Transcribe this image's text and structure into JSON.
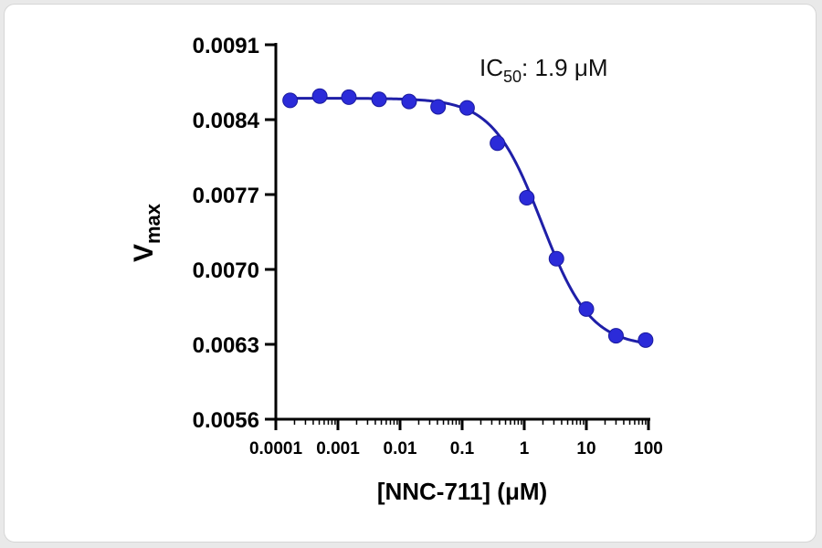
{
  "chart_data": {
    "type": "scatter",
    "x_scale": "log",
    "xlabel": "[NNC-711] (μM)",
    "ylabel": {
      "main": "V",
      "sub": "max"
    },
    "annotation": {
      "main": "IC",
      "sub": "50",
      "rest": ": 1.9 μM"
    },
    "xlim": [
      0.0001,
      100
    ],
    "ylim": [
      0.0056,
      0.0091
    ],
    "x_ticks": [
      {
        "value": 0.0001,
        "label": "0.0001"
      },
      {
        "value": 0.001,
        "label": "0.001"
      },
      {
        "value": 0.01,
        "label": "0.01"
      },
      {
        "value": 0.1,
        "label": "0.1"
      },
      {
        "value": 1,
        "label": "1"
      },
      {
        "value": 10,
        "label": "10"
      },
      {
        "value": 100,
        "label": "100"
      }
    ],
    "y_ticks": [
      {
        "value": 0.0056,
        "label": "0.0056"
      },
      {
        "value": 0.0063,
        "label": "0.0063"
      },
      {
        "value": 0.007,
        "label": "0.0070"
      },
      {
        "value": 0.0077,
        "label": "0.0077"
      },
      {
        "value": 0.0084,
        "label": "0.0084"
      },
      {
        "value": 0.0091,
        "label": "0.0091"
      }
    ],
    "series": [
      {
        "color": "#2b2bd9",
        "points": [
          {
            "x": 0.00017,
            "y": 0.00858
          },
          {
            "x": 0.00051,
            "y": 0.00862
          },
          {
            "x": 0.0015,
            "y": 0.00861
          },
          {
            "x": 0.0046,
            "y": 0.00859
          },
          {
            "x": 0.014,
            "y": 0.00857
          },
          {
            "x": 0.041,
            "y": 0.00852
          },
          {
            "x": 0.12,
            "y": 0.00851
          },
          {
            "x": 0.37,
            "y": 0.00818
          },
          {
            "x": 1.1,
            "y": 0.00767
          },
          {
            "x": 3.3,
            "y": 0.0071
          },
          {
            "x": 10,
            "y": 0.00663
          },
          {
            "x": 30,
            "y": 0.00638
          },
          {
            "x": 90,
            "y": 0.00634
          }
        ]
      }
    ],
    "fit_curve": {
      "model": "four-parameter logistic",
      "top": 0.0086,
      "bottom": 0.00628,
      "ic50": 1.9,
      "hill": 1.1,
      "color": "#1f1fa8"
    }
  }
}
